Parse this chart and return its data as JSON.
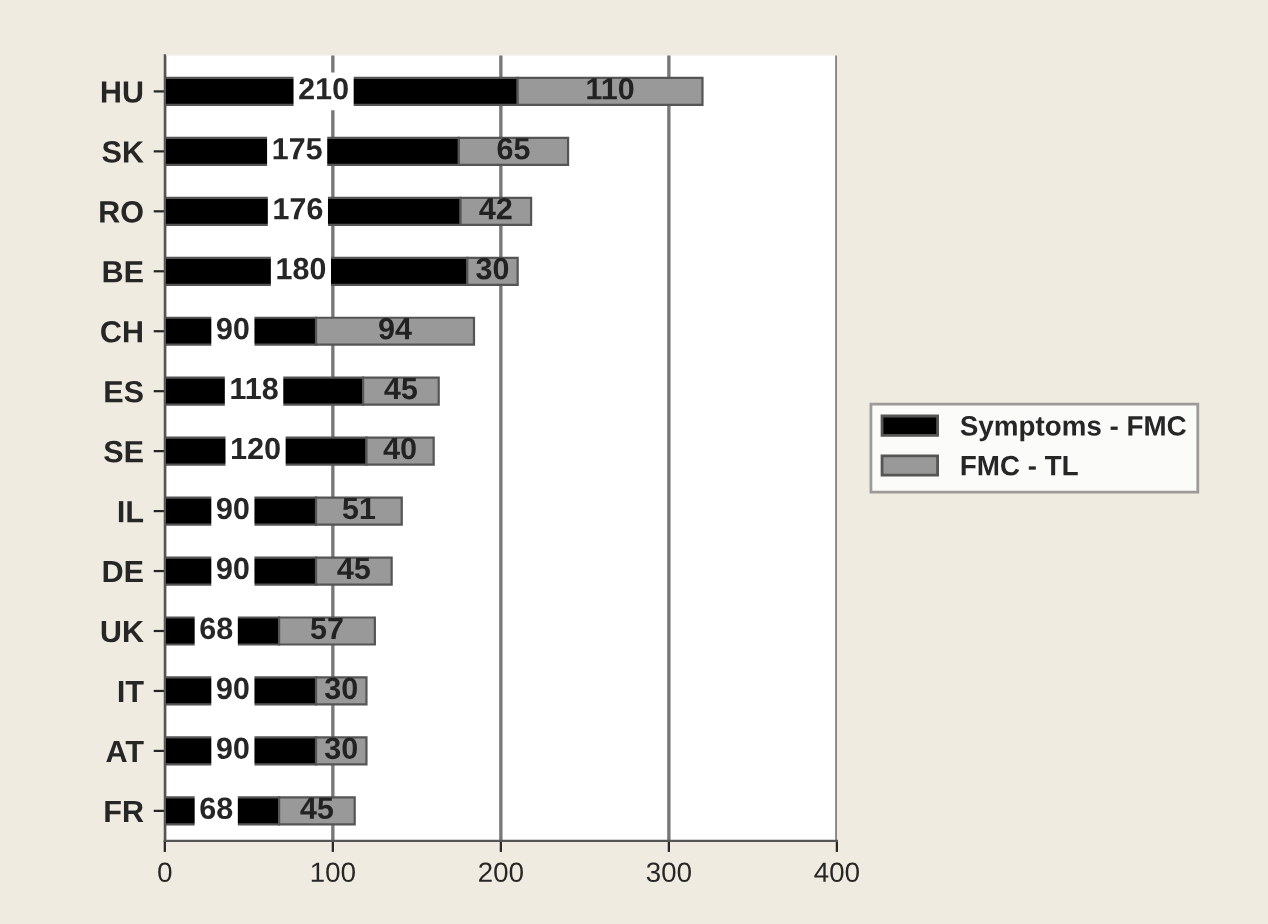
{
  "chart_data": {
    "type": "bar",
    "orientation": "horizontal",
    "stacked": true,
    "categories": [
      "HU",
      "SK",
      "RO",
      "BE",
      "CH",
      "ES",
      "SE",
      "IL",
      "DE",
      "UK",
      "IT",
      "AT",
      "FR"
    ],
    "series": [
      {
        "name": "Symptoms - FMC",
        "color": "#000000",
        "values": [
          210,
          175,
          176,
          180,
          90,
          118,
          120,
          90,
          90,
          68,
          90,
          90,
          68
        ]
      },
      {
        "name": "FMC - TL",
        "color": "#999999",
        "values": [
          110,
          65,
          42,
          30,
          94,
          45,
          40,
          51,
          45,
          57,
          30,
          30,
          45
        ]
      }
    ],
    "xlim": [
      0,
      400
    ],
    "xticks": [
      0,
      100,
      200,
      300,
      400
    ],
    "grid": "x",
    "legend": "right",
    "data_labels": true
  }
}
